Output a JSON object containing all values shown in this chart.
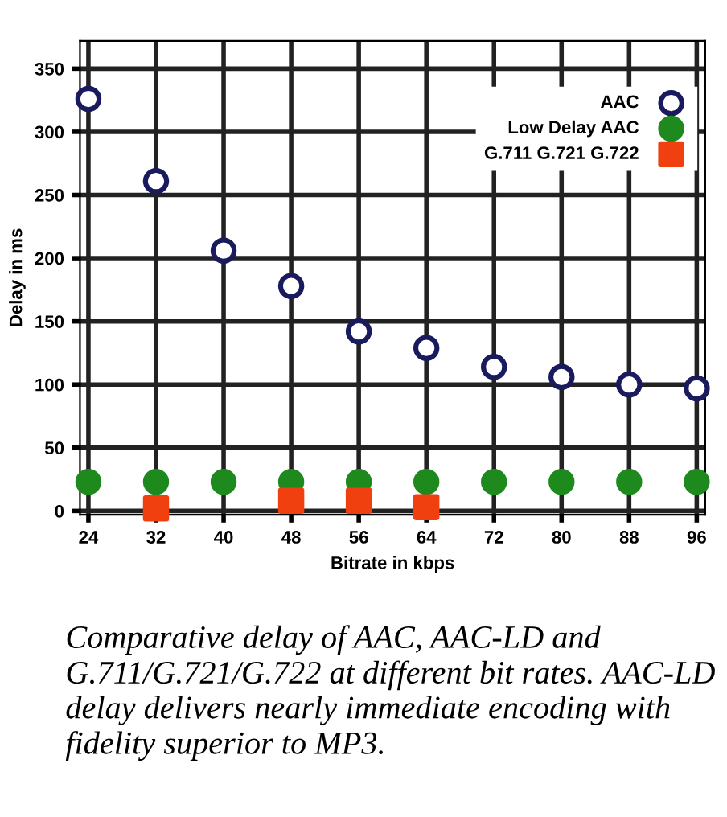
{
  "chart_data": {
    "type": "scatter",
    "xlabel": "Bitrate in kbps",
    "ylabel": "Delay in ms",
    "x": [
      24,
      32,
      40,
      48,
      56,
      64,
      72,
      80,
      88,
      96
    ],
    "series": [
      {
        "name": "AAC",
        "color": "#1a1a5e",
        "marker": "circle",
        "values": [
          326,
          261,
          206,
          178,
          142,
          129,
          114,
          106,
          100,
          97
        ]
      },
      {
        "name": "Low Delay AAC",
        "color": "#1e8a1e",
        "marker": "circle",
        "values": [
          23,
          23,
          23,
          23,
          23,
          23,
          23,
          23,
          23,
          23
        ]
      },
      {
        "name": "G.711 G.721 G.722",
        "color": "#f04010",
        "marker": "square",
        "values": [
          null,
          2,
          null,
          8,
          8,
          3,
          null,
          null,
          null,
          null
        ]
      }
    ],
    "xlim": [
      23,
      97
    ],
    "ylim": [
      -3,
      372
    ],
    "xticks": [
      24,
      32,
      40,
      48,
      56,
      64,
      72,
      80,
      88,
      96
    ],
    "yticks": [
      0,
      50,
      100,
      150,
      200,
      250,
      300,
      350
    ],
    "grid": true,
    "legend": "top right",
    "annotations": [
      "Comparative delay of AAC, AAC-LD and G.711/G.721/G.722 at different bit rates. AAC-LD delay delivers nearly immediate encoding with fidelity superior to MP3."
    ]
  }
}
